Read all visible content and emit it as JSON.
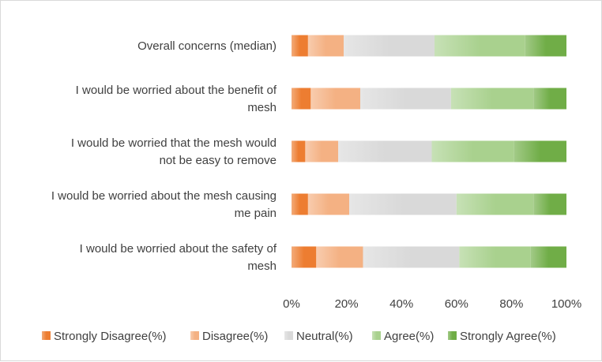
{
  "chart_data": {
    "type": "bar",
    "orientation": "horizontal",
    "stacked": true,
    "percent_stacked": true,
    "categories": [
      "Overall concerns (median)",
      "I would be worried about the benefit of mesh",
      "I would be worried that the mesh would not be easy to remove",
      "I would be worried about the mesh causing me pain",
      "I would be worried about the safety of mesh"
    ],
    "category_lines": [
      [
        "Overall concerns (median)"
      ],
      [
        "I would be worried about the benefit of",
        "mesh"
      ],
      [
        "I would be worried that the mesh would",
        "not be easy to remove"
      ],
      [
        "I would be worried about the mesh causing",
        "me pain"
      ],
      [
        "I would be worried about the safety of",
        "mesh"
      ]
    ],
    "series": [
      {
        "name": "Strongly Disagree(%)",
        "values": [
          6,
          7,
          5,
          6,
          9
        ]
      },
      {
        "name": "Disagree(%)",
        "values": [
          13,
          18,
          12,
          15,
          17
        ]
      },
      {
        "name": "Neutral(%)",
        "values": [
          33,
          33,
          34,
          39,
          35
        ]
      },
      {
        "name": "Agree(%)",
        "values": [
          33,
          30,
          30,
          28,
          26
        ]
      },
      {
        "name": "Strongly Agree(%)",
        "values": [
          15,
          12,
          19,
          12,
          13
        ]
      }
    ],
    "colors": [
      "#ed7d31",
      "#f4b183",
      "#d9d9d9",
      "#a9d18e",
      "#70ad47"
    ],
    "xlim": [
      0,
      100
    ],
    "x_ticks": [
      "0%",
      "20%",
      "40%",
      "60%",
      "80%",
      "100%"
    ],
    "title": "",
    "xlabel": "",
    "ylabel": "",
    "grid": false,
    "legend_position": "bottom"
  }
}
